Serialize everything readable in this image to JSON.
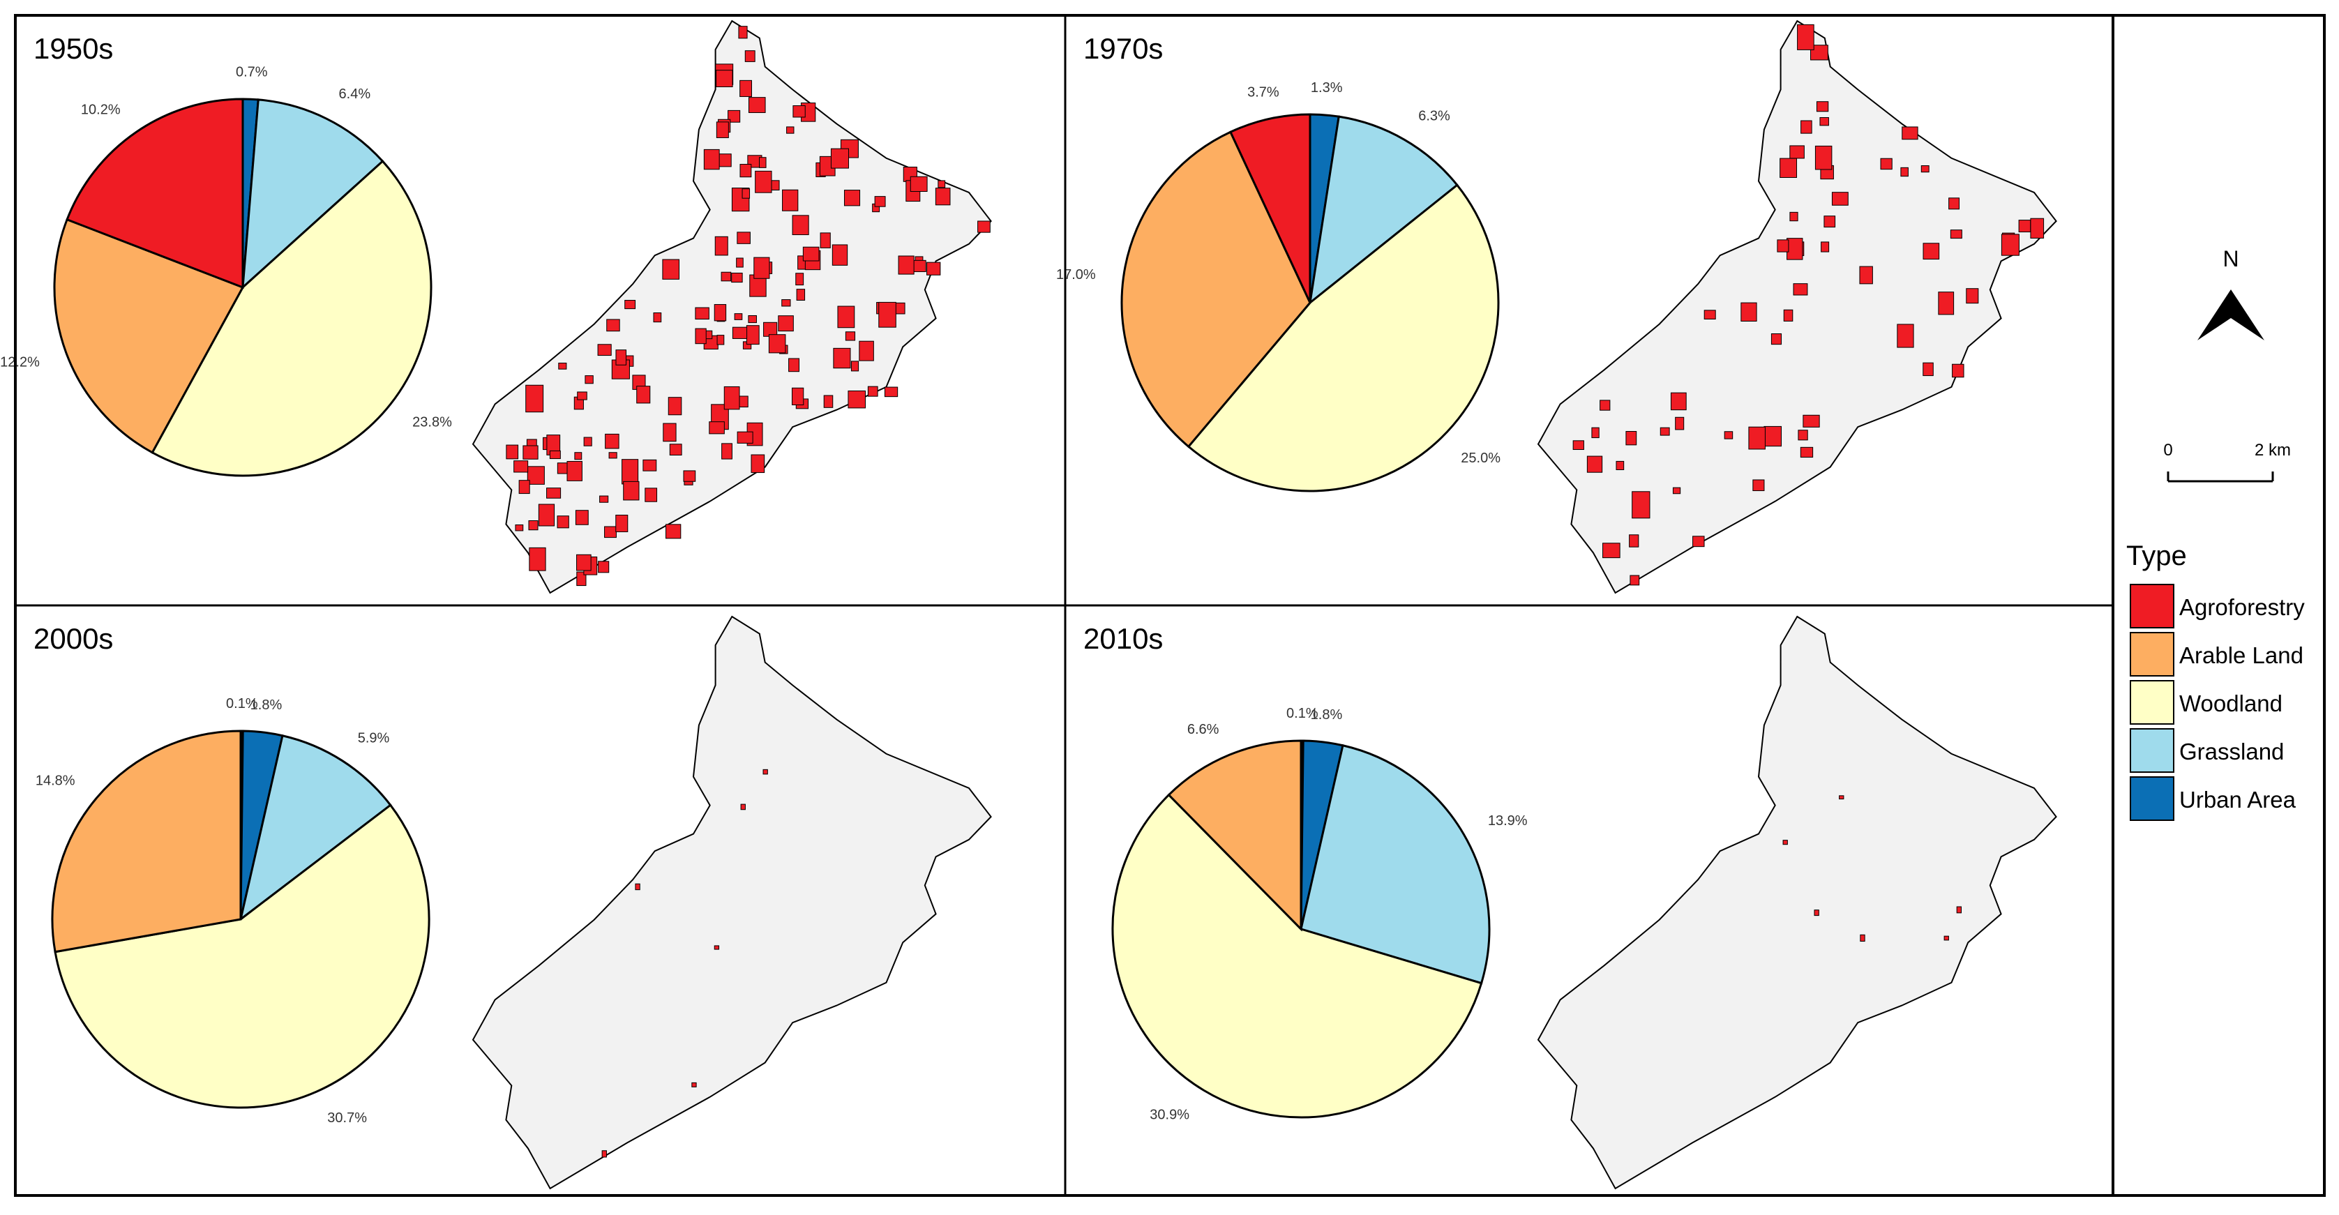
{
  "colors": {
    "agroforestry": "#ef1c24",
    "arable": "#fdae61",
    "woodland": "#ffffc6",
    "grassland": "#9fdbec",
    "urban": "#0b6fb5",
    "region": "#f2f2f2"
  },
  "legend": {
    "title": "Type",
    "items": [
      {
        "label": "Agroforestry",
        "color": "#ef1c24"
      },
      {
        "label": "Arable Land",
        "color": "#fdae61"
      },
      {
        "label": "Woodland",
        "color": "#ffffc6"
      },
      {
        "label": "Grassland",
        "color": "#9fdbec"
      },
      {
        "label": "Urban Area",
        "color": "#0b6fb5"
      }
    ]
  },
  "north_arrow": {
    "label": "N",
    "icon": "north-arrow-icon"
  },
  "scale_bar": {
    "start_label": "0",
    "end_label": "2 km"
  },
  "panels": [
    {
      "decade": "1950s",
      "agroforestry_density": "high",
      "pie": [
        {
          "type": "Urban Area",
          "label": "0.7%",
          "value": 0.7
        },
        {
          "type": "Grassland",
          "label": "6.4%",
          "value": 6.4
        },
        {
          "type": "Woodland",
          "label": "23.8%",
          "value": 23.8
        },
        {
          "type": "Arable Land",
          "label": "12.2%",
          "value": 12.2
        },
        {
          "type": "Agroforestry",
          "label": "10.2%",
          "value": 10.2
        }
      ]
    },
    {
      "decade": "1970s",
      "agroforestry_density": "medium",
      "pie": [
        {
          "type": "Urban Area",
          "label": "1.3%",
          "value": 1.3
        },
        {
          "type": "Grassland",
          "label": "6.3%",
          "value": 6.3
        },
        {
          "type": "Woodland",
          "label": "25.0%",
          "value": 25.0
        },
        {
          "type": "Arable Land",
          "label": "17.0%",
          "value": 17.0
        },
        {
          "type": "Agroforestry",
          "label": "3.7%",
          "value": 3.7
        }
      ]
    },
    {
      "decade": "2000s",
      "agroforestry_density": "trace",
      "pie": [
        {
          "type": "Agroforestry",
          "label": "0.1%",
          "value": 0.1
        },
        {
          "type": "Urban Area",
          "label": "1.8%",
          "value": 1.8
        },
        {
          "type": "Grassland",
          "label": "5.9%",
          "value": 5.9
        },
        {
          "type": "Woodland",
          "label": "30.7%",
          "value": 30.7
        },
        {
          "type": "Arable Land",
          "label": "14.8%",
          "value": 14.8
        }
      ]
    },
    {
      "decade": "2010s",
      "agroforestry_density": "trace",
      "pie": [
        {
          "type": "Agroforestry",
          "label": "0.1%",
          "value": 0.1
        },
        {
          "type": "Urban Area",
          "label": "1.8%",
          "value": 1.8
        },
        {
          "type": "Grassland",
          "label": "13.9%",
          "value": 13.9
        },
        {
          "type": "Woodland",
          "label": "30.9%",
          "value": 30.9
        },
        {
          "type": "Arable Land",
          "label": "6.6%",
          "value": 6.6
        }
      ]
    }
  ]
}
